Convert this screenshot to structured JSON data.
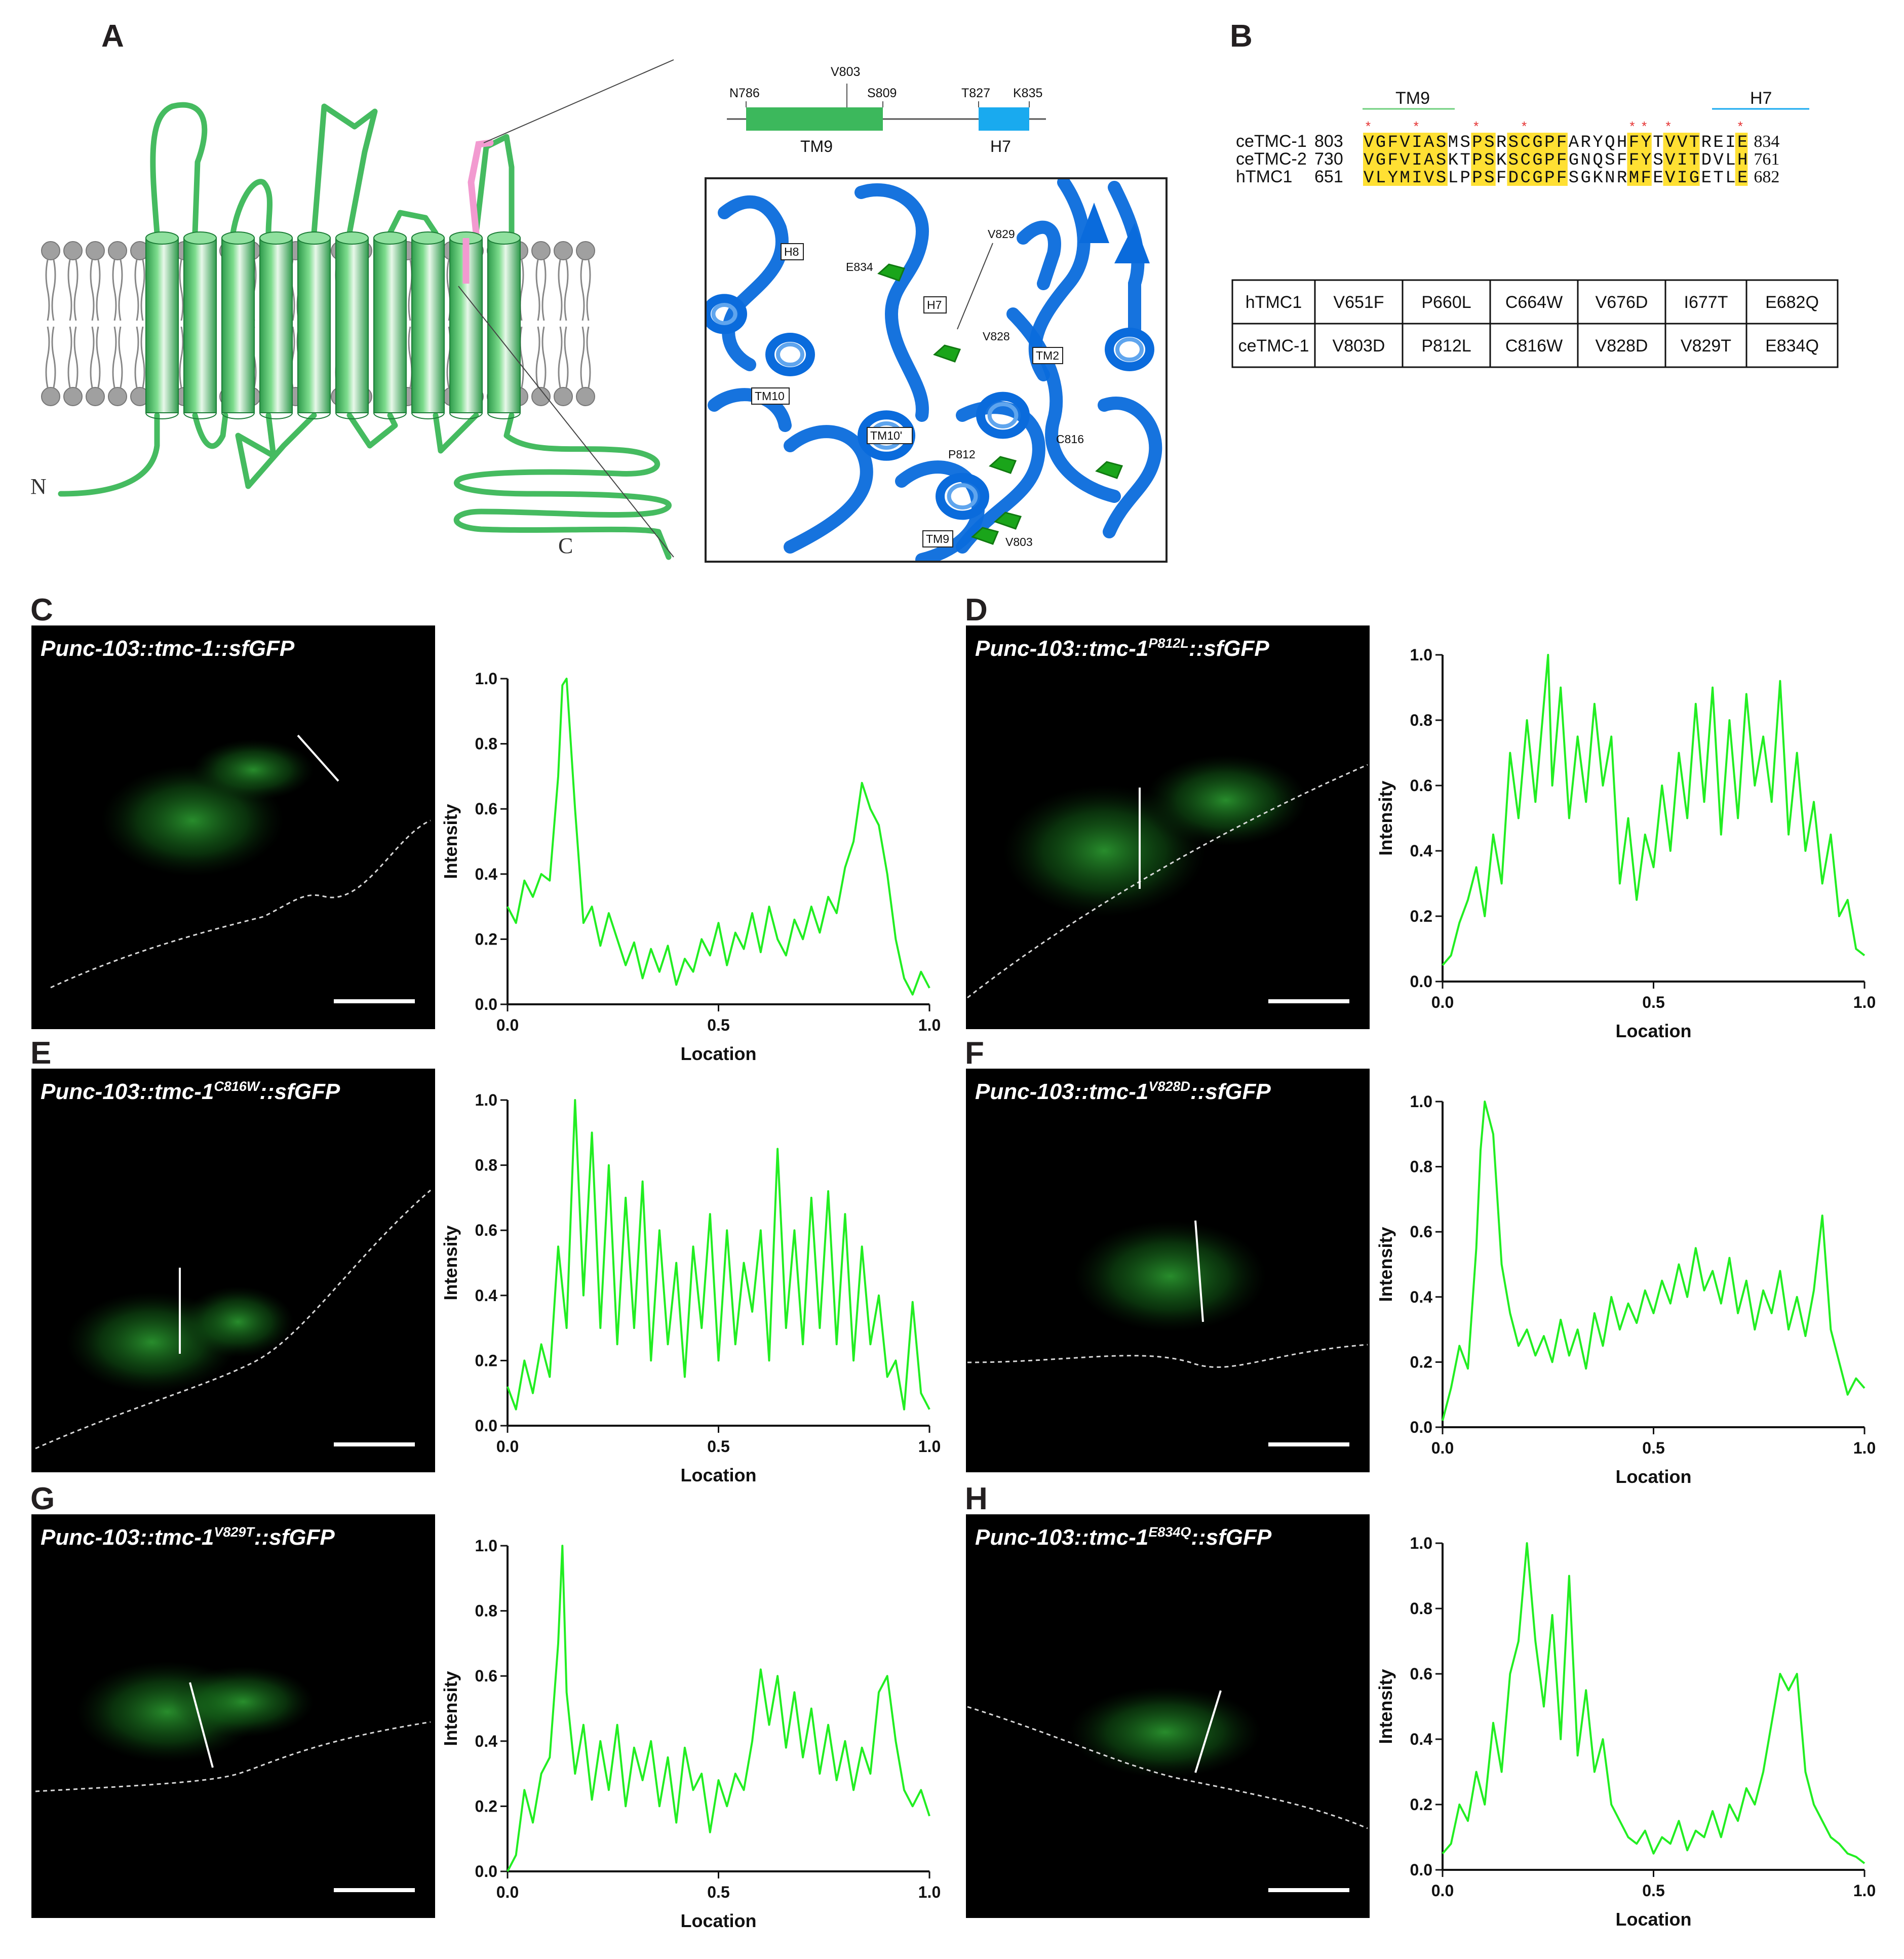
{
  "panel_labels": [
    "A",
    "B",
    "C",
    "D",
    "E",
    "F",
    "G",
    "H"
  ],
  "panelA": {
    "n_terminus": "N",
    "c_terminus": "C",
    "domain_map": {
      "residues": [
        "N786",
        "V803",
        "S809",
        "T827",
        "K835"
      ],
      "tm9": "TM9",
      "h7": "H7",
      "tm9_color": "#3cb85c",
      "h7_color": "#19aaef"
    },
    "structure_labels": [
      "H8",
      "E834",
      "V829",
      "H7",
      "V828",
      "TM2",
      "TM10",
      "TM10'",
      "C816",
      "P812",
      "TM9",
      "V803"
    ],
    "helix_color": "#0a6bdc",
    "residue_color": "#1aa51a"
  },
  "panelB": {
    "tm9_label": "TM9",
    "h7_label": "H7",
    "rows": [
      {
        "name": "ceTMC-1",
        "start": "803",
        "seq": "VGFVIASMSPSRSCGPFARYQHFYTVVTREIE",
        "end": "834"
      },
      {
        "name": "ceTMC-2",
        "start": "730",
        "seq": "VGFVIASKTPSKSCGPFGNQSFFYSVITDVLH",
        "end": "761"
      },
      {
        "name": "hTMC1",
        "start": "651",
        "seq": "VLYMIVSLPPSFDCGPFSGKNRMFEVIGETLE",
        "end": "682"
      }
    ],
    "table": [
      [
        "hTMC1",
        "V651F",
        "P660L",
        "C664W",
        "V676D",
        "I677T",
        "E682Q"
      ],
      [
        "ceTMC-1",
        "V803D",
        "P812L",
        "C816W",
        "V828D",
        "V829T",
        "E834Q"
      ]
    ],
    "highlight_color": "#ffe033",
    "star": "*"
  },
  "microscopy": [
    {
      "panel": "C",
      "base": "Punc-103::tmc-1",
      "sup": "",
      "suffix": "::sfGFP"
    },
    {
      "panel": "D",
      "base": "Punc-103::tmc-1",
      "sup": "P812L",
      "suffix": "::sfGFP"
    },
    {
      "panel": "E",
      "base": "Punc-103::tmc-1",
      "sup": "C816W",
      "suffix": "::sfGFP"
    },
    {
      "panel": "F",
      "base": "Punc-103::tmc-1",
      "sup": "V828D",
      "suffix": "::sfGFP"
    },
    {
      "panel": "G",
      "base": "Punc-103::tmc-1",
      "sup": "V829T",
      "suffix": "::sfGFP"
    },
    {
      "panel": "H",
      "base": "Punc-103::tmc-1",
      "sup": "E834Q",
      "suffix": "::sfGFP"
    }
  ],
  "chart_data": [
    {
      "panel": "C",
      "type": "line",
      "xlabel": "Location",
      "ylabel": "Intensity",
      "xlim": [
        0,
        1
      ],
      "ylim": [
        0,
        1
      ],
      "xticks": [
        "0.0",
        "0.5",
        "1.0"
      ],
      "yticks": [
        "0.0",
        "0.2",
        "0.4",
        "0.6",
        "0.8",
        "1.0"
      ],
      "color": "#22ee22",
      "series": [
        {
          "x": [
            0,
            0.02,
            0.04,
            0.06,
            0.08,
            0.1,
            0.12,
            0.13,
            0.14,
            0.16,
            0.18,
            0.2,
            0.22,
            0.24,
            0.26,
            0.28,
            0.3,
            0.32,
            0.34,
            0.36,
            0.38,
            0.4,
            0.42,
            0.44,
            0.46,
            0.48,
            0.5,
            0.52,
            0.54,
            0.56,
            0.58,
            0.6,
            0.62,
            0.64,
            0.66,
            0.68,
            0.7,
            0.72,
            0.74,
            0.76,
            0.78,
            0.8,
            0.82,
            0.84,
            0.86,
            0.88,
            0.9,
            0.92,
            0.94,
            0.96,
            0.98,
            1.0
          ],
          "y": [
            0.3,
            0.25,
            0.38,
            0.33,
            0.4,
            0.38,
            0.7,
            0.98,
            1.0,
            0.6,
            0.25,
            0.3,
            0.18,
            0.28,
            0.2,
            0.12,
            0.19,
            0.08,
            0.17,
            0.1,
            0.18,
            0.06,
            0.14,
            0.1,
            0.2,
            0.15,
            0.25,
            0.12,
            0.22,
            0.17,
            0.28,
            0.16,
            0.3,
            0.2,
            0.15,
            0.26,
            0.2,
            0.3,
            0.22,
            0.33,
            0.28,
            0.42,
            0.5,
            0.68,
            0.6,
            0.55,
            0.4,
            0.2,
            0.08,
            0.03,
            0.1,
            0.05
          ]
        }
      ]
    },
    {
      "panel": "D",
      "type": "line",
      "xlabel": "Location",
      "ylabel": "Intensity",
      "xlim": [
        0,
        1
      ],
      "ylim": [
        0,
        1
      ],
      "xticks": [
        "0.0",
        "0.5",
        "1.0"
      ],
      "yticks": [
        "0.0",
        "0.2",
        "0.4",
        "0.6",
        "0.8",
        "1.0"
      ],
      "color": "#22ee22",
      "series": [
        {
          "x": [
            0,
            0.02,
            0.04,
            0.06,
            0.08,
            0.1,
            0.12,
            0.14,
            0.16,
            0.18,
            0.2,
            0.22,
            0.24,
            0.25,
            0.26,
            0.28,
            0.3,
            0.32,
            0.34,
            0.36,
            0.38,
            0.4,
            0.42,
            0.44,
            0.46,
            0.48,
            0.5,
            0.52,
            0.54,
            0.56,
            0.58,
            0.6,
            0.62,
            0.64,
            0.66,
            0.68,
            0.7,
            0.72,
            0.74,
            0.76,
            0.78,
            0.8,
            0.82,
            0.84,
            0.86,
            0.88,
            0.9,
            0.92,
            0.94,
            0.96,
            0.98,
            1.0
          ],
          "y": [
            0.05,
            0.08,
            0.18,
            0.25,
            0.35,
            0.2,
            0.45,
            0.3,
            0.7,
            0.5,
            0.8,
            0.55,
            0.85,
            1.0,
            0.6,
            0.9,
            0.5,
            0.75,
            0.55,
            0.85,
            0.6,
            0.75,
            0.3,
            0.5,
            0.25,
            0.45,
            0.35,
            0.6,
            0.4,
            0.7,
            0.5,
            0.85,
            0.55,
            0.9,
            0.45,
            0.8,
            0.5,
            0.88,
            0.6,
            0.75,
            0.55,
            0.92,
            0.45,
            0.7,
            0.4,
            0.55,
            0.3,
            0.45,
            0.2,
            0.25,
            0.1,
            0.08
          ]
        }
      ]
    },
    {
      "panel": "E",
      "type": "line",
      "xlabel": "Location",
      "ylabel": "Intensity",
      "xlim": [
        0,
        1
      ],
      "ylim": [
        0,
        1
      ],
      "xticks": [
        "0.0",
        "0.5",
        "1.0"
      ],
      "yticks": [
        "0.0",
        "0.2",
        "0.4",
        "0.6",
        "0.8",
        "1.0"
      ],
      "color": "#22ee22",
      "series": [
        {
          "x": [
            0,
            0.02,
            0.04,
            0.06,
            0.08,
            0.1,
            0.12,
            0.14,
            0.16,
            0.18,
            0.2,
            0.22,
            0.24,
            0.26,
            0.28,
            0.3,
            0.32,
            0.34,
            0.36,
            0.38,
            0.4,
            0.42,
            0.44,
            0.46,
            0.48,
            0.5,
            0.52,
            0.54,
            0.56,
            0.58,
            0.6,
            0.62,
            0.64,
            0.66,
            0.68,
            0.7,
            0.72,
            0.74,
            0.76,
            0.78,
            0.8,
            0.82,
            0.84,
            0.86,
            0.88,
            0.9,
            0.92,
            0.94,
            0.96,
            0.98,
            1.0
          ],
          "y": [
            0.12,
            0.05,
            0.2,
            0.1,
            0.25,
            0.15,
            0.55,
            0.3,
            1.0,
            0.4,
            0.9,
            0.3,
            0.8,
            0.25,
            0.7,
            0.3,
            0.75,
            0.2,
            0.6,
            0.25,
            0.5,
            0.15,
            0.55,
            0.3,
            0.65,
            0.2,
            0.6,
            0.25,
            0.5,
            0.35,
            0.6,
            0.2,
            0.85,
            0.3,
            0.6,
            0.25,
            0.7,
            0.3,
            0.72,
            0.25,
            0.65,
            0.2,
            0.55,
            0.25,
            0.4,
            0.15,
            0.2,
            0.05,
            0.38,
            0.1,
            0.05
          ]
        }
      ]
    },
    {
      "panel": "F",
      "type": "line",
      "xlabel": "Location",
      "ylabel": "Intensity",
      "xlim": [
        0,
        1
      ],
      "ylim": [
        0,
        1
      ],
      "xticks": [
        "0.0",
        "0.5",
        "1.0"
      ],
      "yticks": [
        "0.0",
        "0.2",
        "0.4",
        "0.6",
        "0.8",
        "1.0"
      ],
      "color": "#22ee22",
      "series": [
        {
          "x": [
            0,
            0.02,
            0.04,
            0.06,
            0.08,
            0.09,
            0.1,
            0.12,
            0.14,
            0.16,
            0.18,
            0.2,
            0.22,
            0.24,
            0.26,
            0.28,
            0.3,
            0.32,
            0.34,
            0.36,
            0.38,
            0.4,
            0.42,
            0.44,
            0.46,
            0.48,
            0.5,
            0.52,
            0.54,
            0.56,
            0.58,
            0.6,
            0.62,
            0.64,
            0.66,
            0.68,
            0.7,
            0.72,
            0.74,
            0.76,
            0.78,
            0.8,
            0.82,
            0.84,
            0.86,
            0.88,
            0.9,
            0.92,
            0.94,
            0.96,
            0.98,
            1.0
          ],
          "y": [
            0.02,
            0.12,
            0.25,
            0.18,
            0.55,
            0.85,
            1.0,
            0.9,
            0.5,
            0.35,
            0.25,
            0.3,
            0.22,
            0.28,
            0.2,
            0.33,
            0.22,
            0.3,
            0.18,
            0.35,
            0.25,
            0.4,
            0.3,
            0.38,
            0.32,
            0.42,
            0.35,
            0.45,
            0.38,
            0.5,
            0.4,
            0.55,
            0.42,
            0.48,
            0.38,
            0.52,
            0.35,
            0.45,
            0.3,
            0.42,
            0.35,
            0.48,
            0.3,
            0.4,
            0.28,
            0.42,
            0.65,
            0.3,
            0.2,
            0.1,
            0.15,
            0.12
          ]
        }
      ]
    },
    {
      "panel": "G",
      "type": "line",
      "xlabel": "Location",
      "ylabel": "Intensity",
      "xlim": [
        0,
        1
      ],
      "ylim": [
        0,
        1
      ],
      "xticks": [
        "0.0",
        "0.5",
        "1.0"
      ],
      "yticks": [
        "0.0",
        "0.2",
        "0.4",
        "0.6",
        "0.8",
        "1.0"
      ],
      "color": "#22ee22",
      "series": [
        {
          "x": [
            0,
            0.02,
            0.04,
            0.06,
            0.08,
            0.1,
            0.12,
            0.13,
            0.14,
            0.16,
            0.18,
            0.2,
            0.22,
            0.24,
            0.26,
            0.28,
            0.3,
            0.32,
            0.34,
            0.36,
            0.38,
            0.4,
            0.42,
            0.44,
            0.46,
            0.48,
            0.5,
            0.52,
            0.54,
            0.56,
            0.58,
            0.6,
            0.62,
            0.64,
            0.66,
            0.68,
            0.7,
            0.72,
            0.74,
            0.76,
            0.78,
            0.8,
            0.82,
            0.84,
            0.86,
            0.88,
            0.9,
            0.92,
            0.94,
            0.96,
            0.98,
            1.0
          ],
          "y": [
            0.0,
            0.05,
            0.25,
            0.15,
            0.3,
            0.35,
            0.7,
            1.0,
            0.55,
            0.3,
            0.45,
            0.22,
            0.4,
            0.25,
            0.45,
            0.2,
            0.38,
            0.28,
            0.4,
            0.2,
            0.35,
            0.15,
            0.38,
            0.25,
            0.3,
            0.12,
            0.28,
            0.2,
            0.3,
            0.25,
            0.4,
            0.62,
            0.45,
            0.6,
            0.38,
            0.55,
            0.35,
            0.5,
            0.3,
            0.45,
            0.28,
            0.4,
            0.25,
            0.38,
            0.3,
            0.55,
            0.6,
            0.4,
            0.25,
            0.2,
            0.25,
            0.17
          ]
        }
      ]
    },
    {
      "panel": "H",
      "type": "line",
      "xlabel": "Location",
      "ylabel": "Intensity",
      "xlim": [
        0,
        1
      ],
      "ylim": [
        0,
        1
      ],
      "xticks": [
        "0.0",
        "0.5",
        "1.0"
      ],
      "yticks": [
        "0.0",
        "0.2",
        "0.4",
        "0.6",
        "0.8",
        "1.0"
      ],
      "color": "#22ee22",
      "series": [
        {
          "x": [
            0,
            0.02,
            0.04,
            0.06,
            0.08,
            0.1,
            0.12,
            0.14,
            0.16,
            0.18,
            0.19,
            0.2,
            0.22,
            0.24,
            0.26,
            0.28,
            0.3,
            0.32,
            0.34,
            0.36,
            0.38,
            0.4,
            0.42,
            0.44,
            0.46,
            0.48,
            0.5,
            0.52,
            0.54,
            0.56,
            0.58,
            0.6,
            0.62,
            0.64,
            0.66,
            0.68,
            0.7,
            0.72,
            0.74,
            0.76,
            0.78,
            0.8,
            0.82,
            0.84,
            0.86,
            0.88,
            0.9,
            0.92,
            0.94,
            0.96,
            0.98,
            1.0
          ],
          "y": [
            0.05,
            0.08,
            0.2,
            0.15,
            0.3,
            0.2,
            0.45,
            0.3,
            0.6,
            0.7,
            0.85,
            1.0,
            0.7,
            0.5,
            0.78,
            0.4,
            0.9,
            0.35,
            0.55,
            0.3,
            0.4,
            0.2,
            0.15,
            0.1,
            0.08,
            0.12,
            0.05,
            0.1,
            0.08,
            0.15,
            0.06,
            0.12,
            0.1,
            0.18,
            0.1,
            0.2,
            0.15,
            0.25,
            0.2,
            0.3,
            0.45,
            0.6,
            0.55,
            0.6,
            0.3,
            0.2,
            0.15,
            0.1,
            0.08,
            0.05,
            0.04,
            0.02
          ]
        }
      ]
    }
  ]
}
